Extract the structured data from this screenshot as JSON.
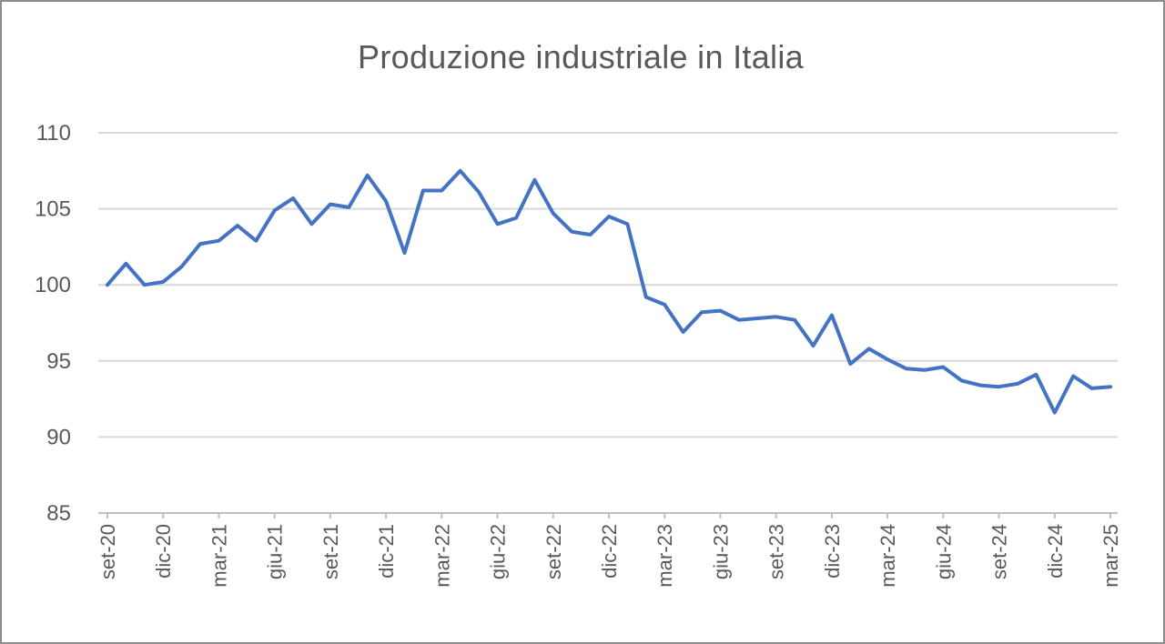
{
  "chart_data": {
    "type": "line",
    "title": "Produzione industriale in Italia",
    "xlabel": "",
    "ylabel": "",
    "ylim": [
      85,
      110
    ],
    "yticks": [
      85,
      90,
      95,
      100,
      105,
      110
    ],
    "grid": true,
    "legend": "none",
    "color": "#4472C4",
    "x": [
      "set-20",
      "ott-20",
      "nov-20",
      "dic-20",
      "gen-21",
      "feb-21",
      "mar-21",
      "apr-21",
      "mag-21",
      "giu-21",
      "lug-21",
      "ago-21",
      "set-21",
      "ott-21",
      "nov-21",
      "dic-21",
      "gen-22",
      "feb-22",
      "mar-22",
      "apr-22",
      "mag-22",
      "giu-22",
      "lug-22",
      "ago-22",
      "set-22",
      "ott-22",
      "nov-22",
      "dic-22",
      "gen-23",
      "feb-23",
      "mar-23",
      "apr-23",
      "mag-23",
      "giu-23",
      "lug-23",
      "ago-23",
      "set-23",
      "ott-23",
      "nov-23",
      "dic-23",
      "gen-24",
      "feb-24",
      "mar-24",
      "apr-24",
      "mag-24",
      "giu-24",
      "lug-24",
      "ago-24",
      "set-24",
      "ott-24",
      "nov-24",
      "dic-24",
      "gen-25",
      "feb-25",
      "mar-25"
    ],
    "xtick_labels": [
      "set-20",
      "dic-20",
      "mar-21",
      "giu-21",
      "set-21",
      "dic-21",
      "mar-22",
      "giu-22",
      "set-22",
      "dic-22",
      "mar-23",
      "giu-23",
      "set-23",
      "dic-23",
      "mar-24",
      "giu-24",
      "set-24",
      "dic-24",
      "mar-25"
    ],
    "series": [
      {
        "name": "Produzione industriale",
        "values": [
          100.0,
          101.4,
          100.0,
          100.2,
          101.2,
          102.7,
          102.9,
          103.9,
          102.9,
          104.9,
          105.7,
          104.0,
          105.3,
          105.1,
          107.2,
          105.5,
          102.1,
          106.2,
          106.2,
          107.5,
          106.1,
          104.0,
          104.4,
          106.9,
          104.7,
          103.5,
          103.3,
          104.5,
          104.0,
          99.2,
          98.7,
          96.9,
          98.2,
          98.3,
          97.7,
          97.8,
          97.9,
          97.7,
          96.0,
          98.0,
          94.8,
          95.8,
          95.1,
          94.5,
          94.4,
          94.6,
          93.7,
          93.4,
          93.3,
          93.5,
          94.1,
          91.6,
          94.0,
          93.2,
          93.3
        ]
      }
    ]
  }
}
